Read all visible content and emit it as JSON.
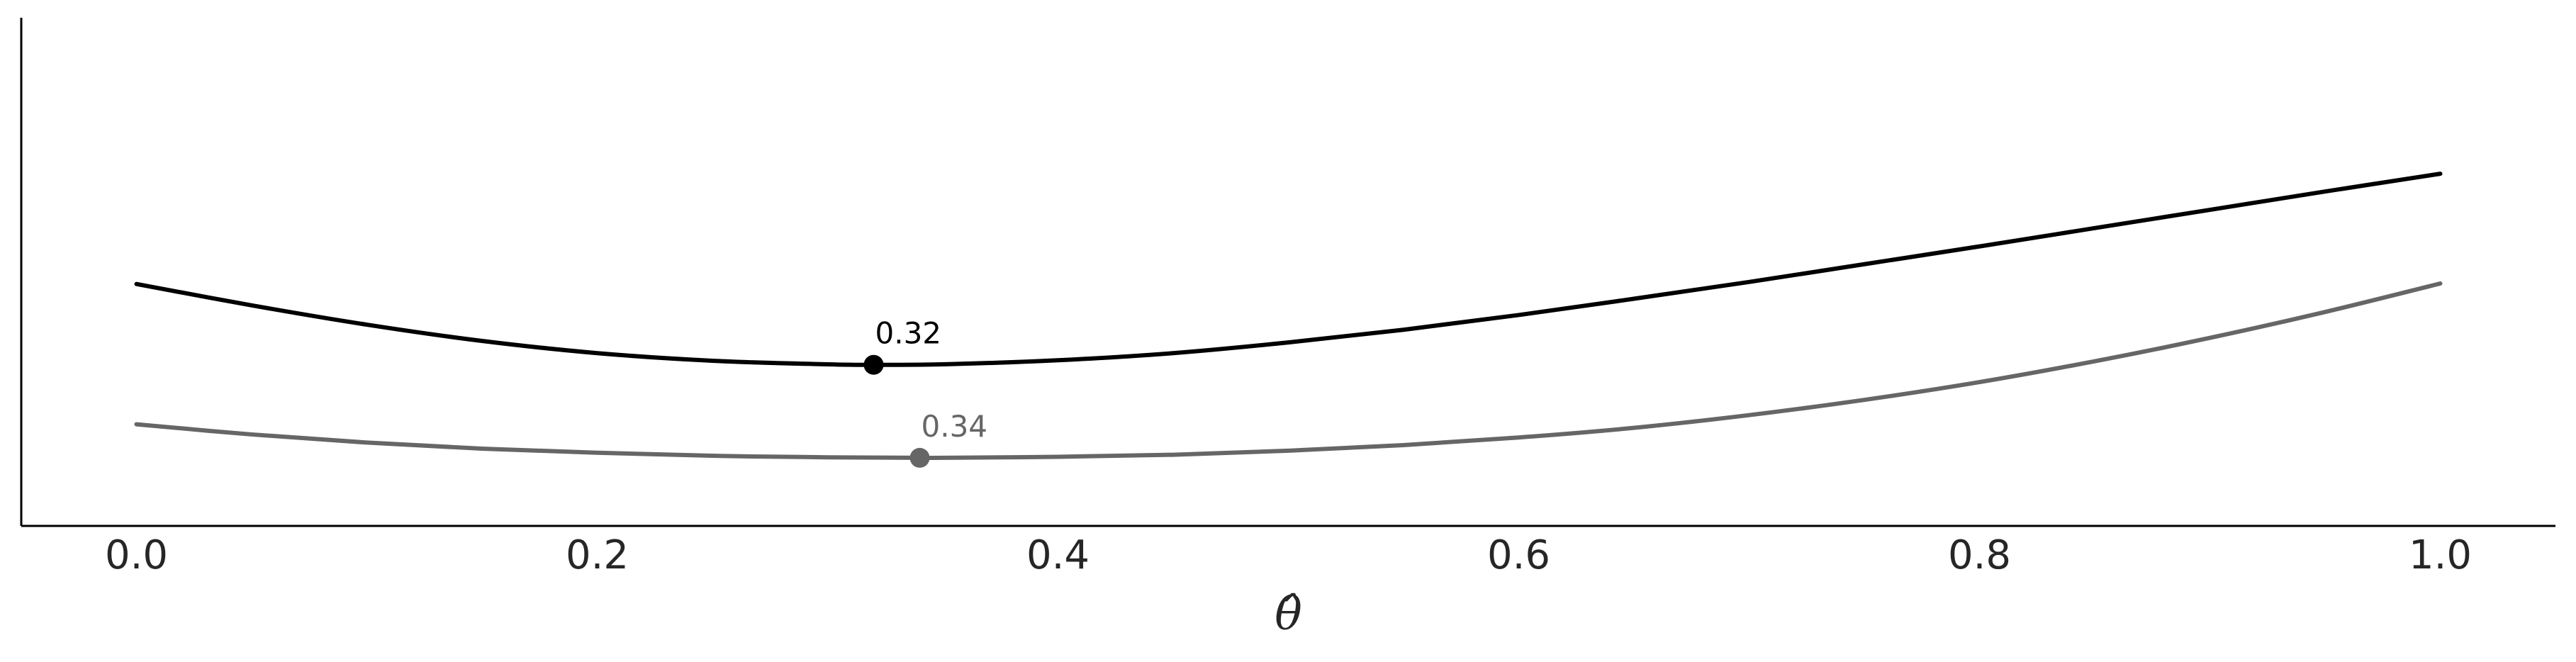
{
  "chart_data": {
    "type": "line",
    "xlabel": "θ̂",
    "ylabel": "",
    "title": "",
    "xlim": [
      -0.05,
      1.05
    ],
    "ylim": [
      0,
      1
    ],
    "xticks": [
      0.0,
      0.2,
      0.4,
      0.6,
      0.8,
      1.0
    ],
    "xtick_labels": [
      "0.0",
      "0.2",
      "0.4",
      "0.6",
      "0.8",
      "1.0"
    ],
    "yticks_visible": false,
    "grid": false,
    "legend": false,
    "series": [
      {
        "color": "#000000",
        "x": [
          0.0,
          0.05,
          0.1,
          0.15,
          0.2,
          0.25,
          0.3,
          0.32,
          0.35,
          0.4,
          0.45,
          0.5,
          0.55,
          0.6,
          0.65,
          0.7,
          0.75,
          0.8,
          0.85,
          0.9,
          0.95,
          1.0
        ],
        "y": [
          0.476,
          0.434,
          0.396,
          0.364,
          0.34,
          0.325,
          0.318,
          0.317,
          0.318,
          0.326,
          0.34,
          0.361,
          0.386,
          0.415,
          0.447,
          0.48,
          0.515,
          0.55,
          0.586,
          0.622,
          0.658,
          0.693
        ],
        "marker": {
          "x": 0.32,
          "y": 0.317,
          "label": "0.32"
        }
      },
      {
        "color": "#666666",
        "x": [
          0.0,
          0.05,
          0.1,
          0.15,
          0.2,
          0.25,
          0.3,
          0.34,
          0.35,
          0.4,
          0.45,
          0.5,
          0.55,
          0.6,
          0.65,
          0.7,
          0.75,
          0.8,
          0.85,
          0.9,
          0.95,
          1.0
        ],
        "y": [
          0.2,
          0.18,
          0.164,
          0.152,
          0.144,
          0.138,
          0.135,
          0.134,
          0.134,
          0.136,
          0.14,
          0.148,
          0.159,
          0.174,
          0.193,
          0.218,
          0.248,
          0.283,
          0.324,
          0.37,
          0.421,
          0.477
        ],
        "marker": {
          "x": 0.34,
          "y": 0.134,
          "label": "0.34"
        }
      }
    ]
  }
}
